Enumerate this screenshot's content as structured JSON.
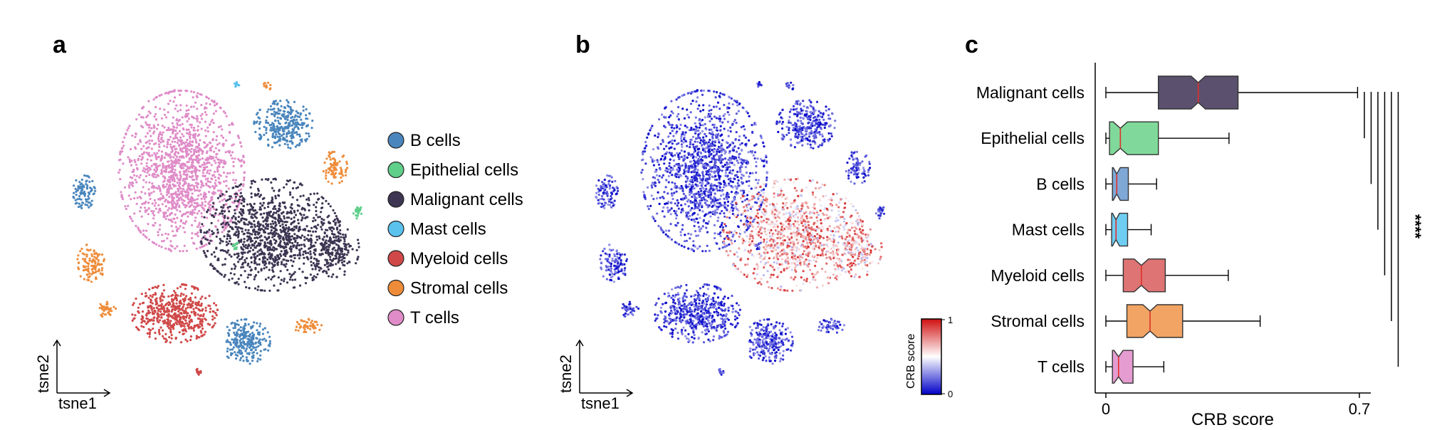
{
  "panels": {
    "a": {
      "letter": "a",
      "xlabel": "tsne1",
      "ylabel": "tsne2",
      "legend": [
        {
          "label": "B cells",
          "color": "#4a86bd"
        },
        {
          "label": "Epithelial cells",
          "color": "#5fcf8a"
        },
        {
          "label": "Malignant cells",
          "color": "#3d3552"
        },
        {
          "label": "Mast cells",
          "color": "#5bc2ee"
        },
        {
          "label": "Myeloid cells",
          "color": "#d04848"
        },
        {
          "label": "Stromal cells",
          "color": "#ee8c3a"
        },
        {
          "label": "T cells",
          "color": "#df8cc8"
        }
      ]
    },
    "b": {
      "letter": "b",
      "xlabel": "tsne1",
      "ylabel": "tsne2",
      "colorbar": {
        "title": "CRB score",
        "max_label": "1",
        "min_label": "0",
        "colors": [
          "#0000c8",
          "#ffffff",
          "#d01010"
        ]
      }
    },
    "c": {
      "letter": "c"
    }
  },
  "chart_data": {
    "type": "box",
    "orientation": "horizontal",
    "xlabel": "CRB score",
    "xlim": [
      0,
      0.7
    ],
    "xticks": [
      "0",
      "0.7"
    ],
    "significance": "****",
    "boxes": [
      {
        "label": "Malignant cells",
        "color": "#5b516e",
        "whisker_low": 0.0,
        "q1": 0.145,
        "median": 0.255,
        "q3": 0.365,
        "whisker_high": 0.695
      },
      {
        "label": "Epithelial cells",
        "color": "#80d99a",
        "whisker_low": 0.0,
        "q1": 0.01,
        "median": 0.04,
        "q3": 0.145,
        "whisker_high": 0.34
      },
      {
        "label": "B cells",
        "color": "#7fa8d6",
        "whisker_low": 0.0,
        "q1": 0.018,
        "median": 0.03,
        "q3": 0.062,
        "whisker_high": 0.14
      },
      {
        "label": "Mast cells",
        "color": "#6fcdf2",
        "whisker_low": 0.0,
        "q1": 0.016,
        "median": 0.028,
        "q3": 0.06,
        "whisker_high": 0.125
      },
      {
        "label": "Myeloid cells",
        "color": "#de7474",
        "whisker_low": 0.0,
        "q1": 0.048,
        "median": 0.098,
        "q3": 0.164,
        "whisker_high": 0.338
      },
      {
        "label": "Stromal cells",
        "color": "#f1a463",
        "whisker_low": 0.0,
        "q1": 0.058,
        "median": 0.122,
        "q3": 0.212,
        "whisker_high": 0.426
      },
      {
        "label": "T cells",
        "color": "#e49cd1",
        "whisker_low": 0.0,
        "q1": 0.018,
        "median": 0.035,
        "q3": 0.075,
        "whisker_high": 0.16
      }
    ]
  }
}
